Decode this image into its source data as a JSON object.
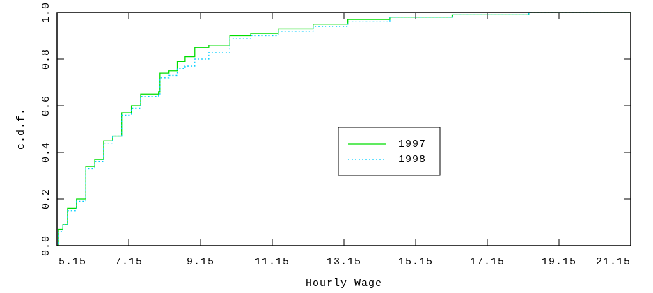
{
  "chart_data": {
    "type": "line",
    "drawstyle": "steps-post",
    "xlabel": "Hourly Wage",
    "ylabel": "c.d.f.",
    "x": [
      5.15,
      5.19,
      5.31,
      5.44,
      5.69,
      5.95,
      6.2,
      6.45,
      6.7,
      6.95,
      7.22,
      7.48,
      7.98,
      8.02,
      8.27,
      8.5,
      8.72,
      8.99,
      9.38,
      9.97,
      10.55,
      11.32,
      12.29,
      13.26,
      14.43,
      16.17,
      18.31,
      21.15
    ],
    "series": [
      {
        "name": "1997",
        "color": "#00dd00",
        "linestyle": "solid",
        "values": [
          0,
          0.07,
          0.09,
          0.16,
          0.2,
          0.34,
          0.37,
          0.45,
          0.47,
          0.57,
          0.6,
          0.65,
          0.66,
          0.74,
          0.75,
          0.79,
          0.81,
          0.85,
          0.86,
          0.9,
          0.91,
          0.93,
          0.95,
          0.97,
          0.98,
          0.99,
          1.0,
          1.0
        ]
      },
      {
        "name": "1998",
        "color": "#00ccff",
        "linestyle": "dotted",
        "values": [
          0,
          0.06,
          0.09,
          0.15,
          0.19,
          0.33,
          0.36,
          0.44,
          0.47,
          0.56,
          0.59,
          0.64,
          0.65,
          0.72,
          0.73,
          0.76,
          0.77,
          0.8,
          0.83,
          0.89,
          0.9,
          0.92,
          0.94,
          0.96,
          0.98,
          0.99,
          1.0,
          1.0
        ]
      }
    ],
    "xlim": [
      5.15,
      21.15
    ],
    "xticks": [
      5.15,
      7.15,
      9.15,
      11.15,
      13.15,
      15.15,
      17.15,
      19.15,
      21.15
    ],
    "ylim": [
      0,
      1
    ],
    "yticks": [
      {
        "value": 0,
        "label": "0.0"
      },
      0.2,
      0.4,
      0.6,
      0.8,
      {
        "value": 1,
        "label": "1.0"
      }
    ],
    "legend": "center"
  }
}
